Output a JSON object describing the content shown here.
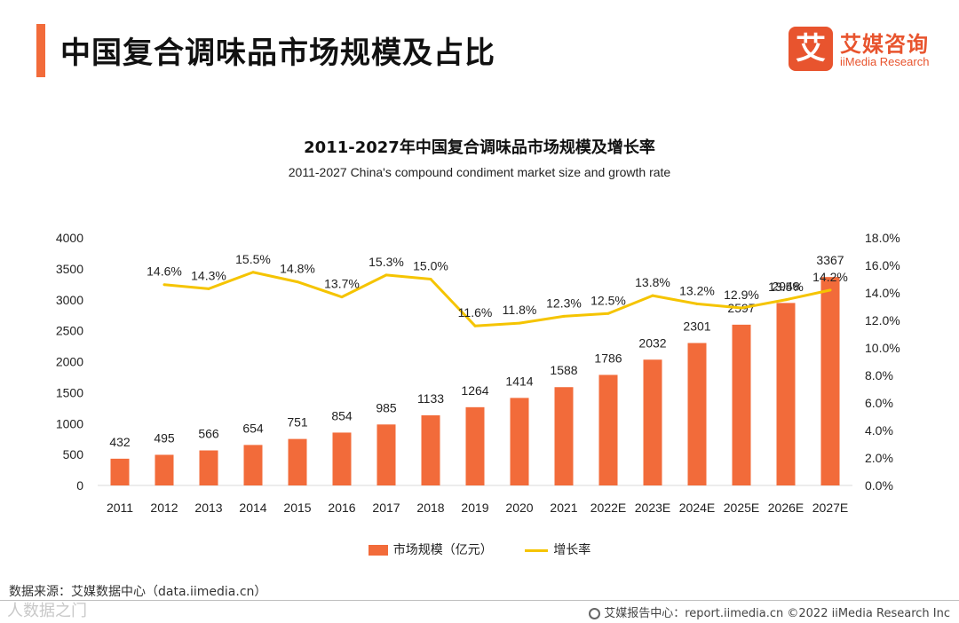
{
  "page": {
    "title": "中国复合调味品市场规模及占比"
  },
  "logo": {
    "mark": "艾",
    "name_cn": "艾媒咨询",
    "name_en": "iiMedia Research"
  },
  "chart_data": {
    "type": "bar",
    "title": "2011-2027年中国复合调味品市场规模及增长率",
    "subtitle": "2011-2027 China's compound condiment market size and growth rate",
    "categories": [
      "2011",
      "2012",
      "2013",
      "2014",
      "2015",
      "2016",
      "2017",
      "2018",
      "2019",
      "2020",
      "2021",
      "2022E",
      "2023E",
      "2024E",
      "2025E",
      "2026E",
      "2027E"
    ],
    "series": [
      {
        "name": "市场规模（亿元）",
        "type": "bar",
        "axis": "left",
        "color": "#f26b3a",
        "values": [
          432,
          495,
          566,
          654,
          751,
          854,
          985,
          1133,
          1264,
          1414,
          1588,
          1786,
          2032,
          2301,
          2597,
          2948,
          3367
        ]
      },
      {
        "name": "增长率",
        "type": "line",
        "axis": "right",
        "color": "#f5c400",
        "values": [
          null,
          14.6,
          14.3,
          15.5,
          14.8,
          13.7,
          15.3,
          15.0,
          11.6,
          11.8,
          12.3,
          12.5,
          13.8,
          13.2,
          12.9,
          13.5,
          14.2
        ],
        "labels": [
          "",
          "14.6%",
          "14.3%",
          "15.5%",
          "14.8%",
          "13.7%",
          "15.3%",
          "15.0%",
          "11.6%",
          "11.8%",
          "12.3%",
          "12.5%",
          "13.8%",
          "13.2%",
          "12.9%",
          "13.5%",
          "14.2%"
        ]
      }
    ],
    "y_left": {
      "min": 0,
      "max": 4000,
      "ticks": [
        "0",
        "500",
        "1000",
        "1500",
        "2000",
        "2500",
        "3000",
        "3500",
        "4000"
      ]
    },
    "y_right": {
      "min": 0,
      "max": 18,
      "ticks": [
        "0.0%",
        "2.0%",
        "4.0%",
        "6.0%",
        "8.0%",
        "10.0%",
        "12.0%",
        "14.0%",
        "16.0%",
        "18.0%"
      ]
    },
    "grid": false,
    "legend_position": "bottom"
  },
  "legend": {
    "bar_label": "市场规模（亿元）",
    "line_label": "增长率"
  },
  "source": "数据来源：艾媒数据中心（data.iimedia.cn）",
  "watermark": "人数据之门",
  "footer": "艾媒报告中心：report.iimedia.cn   ©2022  iiMedia Research  Inc"
}
